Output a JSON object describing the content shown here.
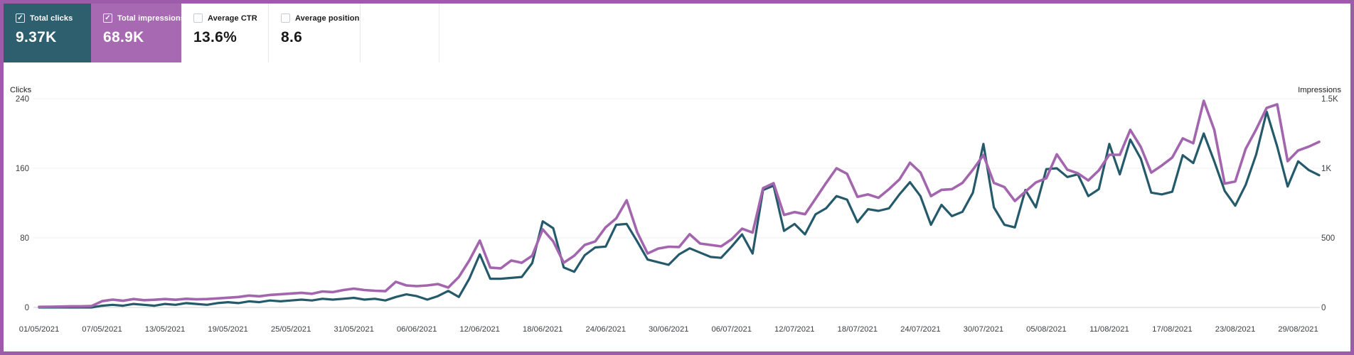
{
  "frame": {
    "border_color": "#9c5ca9",
    "background": "#ffffff"
  },
  "scorecards": [
    {
      "label": "Total clicks",
      "value": "9.37K",
      "checked": true,
      "bg": "#2d5f6e",
      "text_color": "#ffffff"
    },
    {
      "label": "Total impressions",
      "value": "68.9K",
      "checked": true,
      "bg": "#a669b2",
      "text_color": "#ffffff"
    },
    {
      "label": "Average CTR",
      "value": "13.6%",
      "checked": false,
      "bg": "#ffffff",
      "text_color": "#1a1a1a"
    },
    {
      "label": "Average position",
      "value": "8.6",
      "checked": false,
      "bg": "#ffffff",
      "text_color": "#1a1a1a"
    }
  ],
  "chart_data": {
    "type": "line",
    "date_range": [
      "01/05/2021",
      "31/08/2021"
    ],
    "x_unit": "day",
    "grid": "horizontal-light",
    "left_axis": {
      "label": "Clicks",
      "max": 240,
      "ticks": [
        0,
        80,
        160,
        240
      ]
    },
    "right_axis": {
      "label": "Impressions",
      "max": 1500,
      "ticks": [
        {
          "label": "0",
          "value": 0
        },
        {
          "label": "500",
          "value": 500
        },
        {
          "label": "1K",
          "value": 1000
        },
        {
          "label": "1.5K",
          "value": 1500
        }
      ]
    },
    "x_tick_labels": [
      "01/05/2021",
      "07/05/2021",
      "13/05/2021",
      "19/05/2021",
      "25/05/2021",
      "31/05/2021",
      "06/06/2021",
      "12/06/2021",
      "18/06/2021",
      "24/06/2021",
      "30/06/2021",
      "06/07/2021",
      "12/07/2021",
      "18/07/2021",
      "24/07/2021",
      "30/07/2021",
      "05/08/2021",
      "11/08/2021",
      "17/08/2021",
      "23/08/2021",
      "29/08/2021"
    ],
    "x_tick_interval_days": 6,
    "series": [
      {
        "name": "Total clicks",
        "axis": "left",
        "color": "#255a6b",
        "values": [
          0,
          0,
          0,
          0,
          0,
          0,
          2,
          3,
          2,
          4,
          3,
          2,
          4,
          3,
          5,
          4,
          3,
          5,
          6,
          5,
          7,
          6,
          8,
          7,
          8,
          9,
          8,
          10,
          9,
          10,
          11,
          9,
          10,
          8,
          12,
          15,
          13,
          9,
          13,
          19,
          12,
          33,
          61,
          33,
          33,
          34,
          35,
          51,
          99,
          91,
          46,
          41,
          60,
          69,
          70,
          95,
          96,
          76,
          55,
          52,
          49,
          61,
          68,
          63,
          58,
          57,
          70,
          84,
          62,
          135,
          140,
          88,
          96,
          84,
          107,
          114,
          128,
          124,
          98,
          113,
          111,
          114,
          130,
          144,
          128,
          95,
          118,
          105,
          110,
          132,
          188,
          115,
          95,
          92,
          135,
          115,
          159,
          160,
          150,
          153,
          128,
          136,
          188,
          153,
          193,
          171,
          132,
          130,
          133,
          175,
          166,
          200,
          168,
          134,
          117,
          141,
          176,
          225,
          185,
          139,
          168,
          158,
          152
        ]
      },
      {
        "name": "Total impressions",
        "axis": "right",
        "color": "#a366ae",
        "values": [
          4,
          5,
          6,
          8,
          8,
          10,
          45,
          56,
          48,
          60,
          52,
          55,
          60,
          55,
          62,
          58,
          60,
          65,
          70,
          75,
          85,
          80,
          90,
          95,
          100,
          105,
          98,
          115,
          110,
          125,
          135,
          125,
          120,
          117,
          184,
          158,
          153,
          158,
          168,
          143,
          219,
          337,
          480,
          286,
          281,
          337,
          321,
          372,
          561,
          474,
          321,
          372,
          449,
          474,
          576,
          640,
          770,
          541,
          388,
          423,
          436,
          434,
          526,
          459,
          449,
          439,
          490,
          566,
          538,
          857,
          893,
          665,
          685,
          670,
          781,
          894,
          1000,
          960,
          795,
          812,
          788,
          850,
          920,
          1040,
          970,
          800,
          845,
          850,
          895,
          990,
          1095,
          895,
          865,
          765,
          832,
          898,
          929,
          1100,
          990,
          964,
          913,
          985,
          1097,
          1097,
          1276,
          1153,
          969,
          1020,
          1077,
          1215,
          1180,
          1485,
          1276,
          890,
          905,
          1140,
          1280,
          1434,
          1459,
          1051,
          1128,
          1155,
          1190
        ]
      }
    ]
  }
}
